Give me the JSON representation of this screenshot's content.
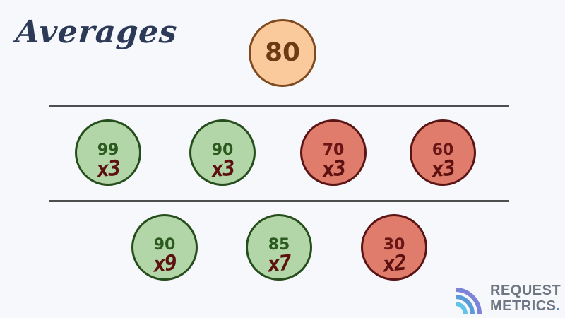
{
  "title": "Averages",
  "overall": {
    "value": "80"
  },
  "row1": [
    {
      "value": "99",
      "multiplier": "x3",
      "status": "green"
    },
    {
      "value": "90",
      "multiplier": "x3",
      "status": "green"
    },
    {
      "value": "70",
      "multiplier": "x3",
      "status": "red"
    },
    {
      "value": "60",
      "multiplier": "x3",
      "status": "red"
    }
  ],
  "row2": [
    {
      "value": "90",
      "multiplier": "x9",
      "status": "green"
    },
    {
      "value": "85",
      "multiplier": "x7",
      "status": "green"
    },
    {
      "value": "30",
      "multiplier": "x2",
      "status": "red"
    }
  ],
  "logo": {
    "line1": "REQUEST",
    "line2": "METRICS",
    "dot": "."
  },
  "colors": {
    "green_fill": "#b3d6a9",
    "red_fill": "#df7c6c",
    "overall_fill": "#fac99c",
    "title": "#2c3a57"
  }
}
